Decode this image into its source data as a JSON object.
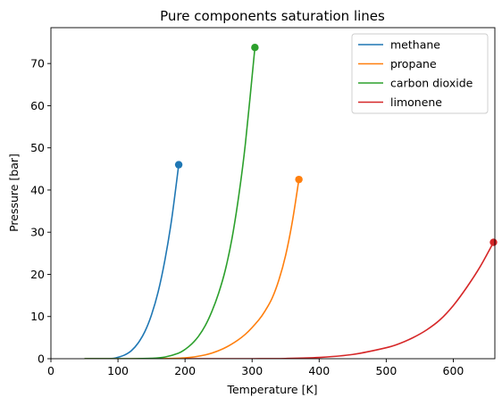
{
  "chart_data": {
    "type": "line",
    "title": "Pure components saturation lines",
    "xlabel": "Temperature [K]",
    "ylabel": "Pressure [bar]",
    "xlim": [
      0,
      662
    ],
    "ylim": [
      0,
      78.5
    ],
    "xticks": [
      0,
      100,
      200,
      300,
      400,
      500,
      600
    ],
    "yticks": [
      0,
      10,
      20,
      30,
      40,
      50,
      60,
      70
    ],
    "xtick_labels": [
      "0",
      "100",
      "200",
      "300",
      "400",
      "500",
      "600"
    ],
    "ytick_labels": [
      "0",
      "10",
      "20",
      "30",
      "40",
      "50",
      "60",
      "70"
    ],
    "grid": false,
    "legend_position": "top-right",
    "series": [
      {
        "name": "methane",
        "color": "#1f77b4",
        "x": [
          50,
          90,
          100,
          110,
          120,
          130,
          140,
          150,
          160,
          170,
          180,
          190.6
        ],
        "y": [
          0.0,
          0.05,
          0.34,
          0.88,
          1.9,
          3.7,
          6.4,
          10.4,
          15.9,
          23.4,
          33.0,
          46.0
        ],
        "critical_point": {
          "x": 190.6,
          "y": 46.0
        }
      },
      {
        "name": "propane",
        "color": "#ff7f0e",
        "x": [
          50,
          150,
          200,
          230,
          250,
          270,
          290,
          310,
          320,
          330,
          340,
          350,
          360,
          369.8
        ],
        "y": [
          0.0,
          0.0,
          0.2,
          0.9,
          1.9,
          3.5,
          5.8,
          9.2,
          11.5,
          14.4,
          18.7,
          24.5,
          32.5,
          42.5
        ],
        "critical_point": {
          "x": 369.8,
          "y": 42.5
        }
      },
      {
        "name": "carbon dioxide",
        "color": "#2ca02c",
        "x": [
          50,
          120,
          150,
          170,
          190,
          200,
          210,
          220,
          230,
          240,
          250,
          260,
          270,
          280,
          290,
          304.2
        ],
        "y": [
          0.0,
          0.0,
          0.1,
          0.4,
          1.3,
          2.2,
          3.5,
          5.3,
          7.8,
          11.2,
          15.5,
          21.0,
          28.5,
          38.5,
          51.0,
          73.8
        ],
        "critical_point": {
          "x": 304.2,
          "y": 73.8
        }
      },
      {
        "name": "limonene",
        "color": "#d62728",
        "x": [
          200,
          300,
          350,
          400,
          450,
          500,
          520,
          540,
          560,
          580,
          600,
          620,
          640,
          660
        ],
        "y": [
          0.0,
          0.0,
          0.05,
          0.3,
          1.0,
          2.6,
          3.6,
          5.0,
          6.8,
          9.2,
          12.6,
          16.9,
          21.8,
          27.6
        ],
        "critical_point": {
          "x": 660,
          "y": 27.6
        }
      }
    ]
  }
}
